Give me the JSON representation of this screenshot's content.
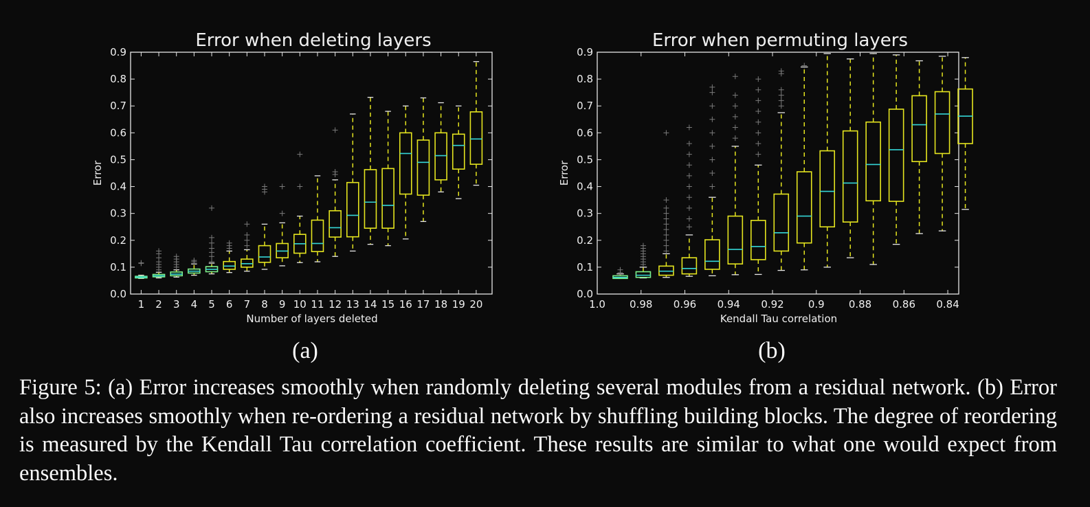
{
  "chart_data": [
    {
      "type": "box",
      "title": "Error when deleting layers",
      "xlabel": "Number of layers deleted",
      "ylabel": "Error",
      "ylim": [
        0.0,
        0.9
      ],
      "yticks": [
        "0.0",
        "0.1",
        "0.2",
        "0.3",
        "0.4",
        "0.5",
        "0.6",
        "0.7",
        "0.8",
        "0.9"
      ],
      "categories": [
        "1",
        "2",
        "3",
        "4",
        "5",
        "6",
        "7",
        "8",
        "9",
        "10",
        "11",
        "12",
        "13",
        "14",
        "15",
        "16",
        "17",
        "18",
        "19",
        "20"
      ],
      "grid": false,
      "box_color": "#e5e51f",
      "early_box_color": "#7ef08a",
      "median_color": "#35d6d6",
      "boxes": [
        {
          "wlo": 0.058,
          "q1": 0.06,
          "med": 0.063,
          "q3": 0.066,
          "whi": 0.07,
          "out": [
            0.114,
            0.116
          ]
        },
        {
          "wlo": 0.06,
          "q1": 0.064,
          "med": 0.068,
          "q3": 0.073,
          "whi": 0.081,
          "out": [
            0.09,
            0.1,
            0.11,
            0.12,
            0.135,
            0.15,
            0.16
          ]
        },
        {
          "wlo": 0.063,
          "q1": 0.068,
          "med": 0.074,
          "q3": 0.082,
          "whi": 0.09,
          "out": [
            0.1,
            0.11,
            0.12,
            0.13,
            0.14
          ]
        },
        {
          "wlo": 0.07,
          "q1": 0.078,
          "med": 0.085,
          "q3": 0.093,
          "whi": 0.112,
          "out": [
            0.12,
            0.125
          ]
        },
        {
          "wlo": 0.075,
          "q1": 0.083,
          "med": 0.092,
          "q3": 0.102,
          "whi": 0.115,
          "out": [
            0.12,
            0.14,
            0.155,
            0.17,
            0.19,
            0.21,
            0.32
          ]
        },
        {
          "wlo": 0.08,
          "q1": 0.092,
          "med": 0.104,
          "q3": 0.121,
          "whi": 0.16,
          "out": [
            0.17,
            0.18,
            0.19
          ]
        },
        {
          "wlo": 0.085,
          "q1": 0.1,
          "med": 0.113,
          "q3": 0.13,
          "whi": 0.165,
          "out": [
            0.18,
            0.2,
            0.22,
            0.26
          ]
        },
        {
          "wlo": 0.092,
          "q1": 0.118,
          "med": 0.138,
          "q3": 0.18,
          "whi": 0.26,
          "out": [
            0.38,
            0.39,
            0.4
          ]
        },
        {
          "wlo": 0.105,
          "q1": 0.135,
          "med": 0.16,
          "q3": 0.188,
          "whi": 0.265,
          "out": [
            0.3,
            0.4
          ]
        },
        {
          "wlo": 0.117,
          "q1": 0.152,
          "med": 0.187,
          "q3": 0.222,
          "whi": 0.29,
          "out": [
            0.4,
            0.52
          ]
        },
        {
          "wlo": 0.12,
          "q1": 0.158,
          "med": 0.188,
          "q3": 0.275,
          "whi": 0.44,
          "out": []
        },
        {
          "wlo": 0.14,
          "q1": 0.212,
          "med": 0.247,
          "q3": 0.31,
          "whi": 0.425,
          "out": [
            0.445,
            0.455,
            0.61
          ]
        },
        {
          "wlo": 0.16,
          "q1": 0.213,
          "med": 0.293,
          "q3": 0.415,
          "whi": 0.67,
          "out": []
        },
        {
          "wlo": 0.185,
          "q1": 0.245,
          "med": 0.342,
          "q3": 0.463,
          "whi": 0.732,
          "out": []
        },
        {
          "wlo": 0.18,
          "q1": 0.245,
          "med": 0.33,
          "q3": 0.467,
          "whi": 0.68,
          "out": []
        },
        {
          "wlo": 0.205,
          "q1": 0.372,
          "med": 0.523,
          "q3": 0.6,
          "whi": 0.7,
          "out": []
        },
        {
          "wlo": 0.27,
          "q1": 0.368,
          "med": 0.49,
          "q3": 0.573,
          "whi": 0.73,
          "out": []
        },
        {
          "wlo": 0.38,
          "q1": 0.425,
          "med": 0.515,
          "q3": 0.6,
          "whi": 0.712,
          "out": []
        },
        {
          "wlo": 0.355,
          "q1": 0.465,
          "med": 0.553,
          "q3": 0.595,
          "whi": 0.7,
          "out": []
        },
        {
          "wlo": 0.405,
          "q1": 0.483,
          "med": 0.577,
          "q3": 0.678,
          "whi": 0.865,
          "out": []
        }
      ]
    },
    {
      "type": "box",
      "title": "Error when permuting layers",
      "xlabel": "Kendall Tau correlation",
      "ylabel": "Error",
      "ylim": [
        0.0,
        0.9
      ],
      "xlim": [
        1.0,
        0.835
      ],
      "yticks": [
        "0.0",
        "0.1",
        "0.2",
        "0.3",
        "0.4",
        "0.5",
        "0.6",
        "0.7",
        "0.8",
        "0.9"
      ],
      "xticks": [
        {
          "value": 1.0,
          "label": "1.0"
        },
        {
          "value": 0.98,
          "label": "0.98"
        },
        {
          "value": 0.96,
          "label": "0.96"
        },
        {
          "value": 0.94,
          "label": "0.94"
        },
        {
          "value": 0.92,
          "label": "0.92"
        },
        {
          "value": 0.9,
          "label": "0.9"
        },
        {
          "value": 0.88,
          "label": "0.88"
        },
        {
          "value": 0.86,
          "label": "0.86"
        },
        {
          "value": 0.84,
          "label": "0.84"
        }
      ],
      "grid": false,
      "box_color": "#e5e51f",
      "early_box_color": "#7ef08a",
      "median_color": "#35d6d6",
      "boxes": [
        {
          "x": 0.9895,
          "wlo": 0.058,
          "q1": 0.058,
          "med": 0.062,
          "q3": 0.068,
          "whi": 0.075,
          "out": [
            0.08,
            0.09
          ]
        },
        {
          "x": 0.979,
          "wlo": 0.06,
          "q1": 0.062,
          "med": 0.07,
          "q3": 0.083,
          "whi": 0.1,
          "out": [
            0.11,
            0.12,
            0.13,
            0.14,
            0.15,
            0.16,
            0.17,
            0.18
          ]
        },
        {
          "x": 0.9685,
          "wlo": 0.062,
          "q1": 0.07,
          "med": 0.085,
          "q3": 0.104,
          "whi": 0.15,
          "out": [
            0.16,
            0.18,
            0.2,
            0.22,
            0.24,
            0.26,
            0.28,
            0.3,
            0.32,
            0.35,
            0.6
          ]
        },
        {
          "x": 0.958,
          "wlo": 0.066,
          "q1": 0.075,
          "med": 0.095,
          "q3": 0.135,
          "whi": 0.22,
          "out": [
            0.25,
            0.28,
            0.32,
            0.36,
            0.4,
            0.44,
            0.48,
            0.52,
            0.56,
            0.62
          ]
        },
        {
          "x": 0.9475,
          "wlo": 0.068,
          "q1": 0.092,
          "med": 0.122,
          "q3": 0.202,
          "whi": 0.36,
          "out": [
            0.4,
            0.45,
            0.5,
            0.55,
            0.6,
            0.65,
            0.7,
            0.75,
            0.77
          ]
        },
        {
          "x": 0.937,
          "wlo": 0.072,
          "q1": 0.112,
          "med": 0.166,
          "q3": 0.29,
          "whi": 0.55,
          "out": [
            0.58,
            0.62,
            0.66,
            0.7,
            0.74,
            0.81
          ]
        },
        {
          "x": 0.9265,
          "wlo": 0.073,
          "q1": 0.128,
          "med": 0.177,
          "q3": 0.274,
          "whi": 0.48,
          "out": [
            0.52,
            0.56,
            0.6,
            0.64,
            0.68,
            0.72,
            0.76,
            0.8
          ]
        },
        {
          "x": 0.916,
          "wlo": 0.088,
          "q1": 0.16,
          "med": 0.228,
          "q3": 0.372,
          "whi": 0.675,
          "out": [
            0.7,
            0.72,
            0.74,
            0.76,
            0.82,
            0.83
          ]
        },
        {
          "x": 0.9055,
          "wlo": 0.09,
          "q1": 0.19,
          "med": 0.29,
          "q3": 0.455,
          "whi": 0.845,
          "out": [
            0.85
          ]
        },
        {
          "x": 0.895,
          "wlo": 0.1,
          "q1": 0.25,
          "med": 0.382,
          "q3": 0.533,
          "whi": 0.895,
          "out": []
        },
        {
          "x": 0.8845,
          "wlo": 0.135,
          "q1": 0.268,
          "med": 0.413,
          "q3": 0.607,
          "whi": 0.875,
          "out": []
        },
        {
          "x": 0.874,
          "wlo": 0.11,
          "q1": 0.347,
          "med": 0.482,
          "q3": 0.64,
          "whi": 0.895,
          "out": []
        },
        {
          "x": 0.8635,
          "wlo": 0.185,
          "q1": 0.345,
          "med": 0.537,
          "q3": 0.688,
          "whi": 0.89,
          "out": []
        },
        {
          "x": 0.853,
          "wlo": 0.225,
          "q1": 0.493,
          "med": 0.63,
          "q3": 0.738,
          "whi": 0.868,
          "out": []
        },
        {
          "x": 0.8425,
          "wlo": 0.235,
          "q1": 0.523,
          "med": 0.67,
          "q3": 0.753,
          "whi": 0.885,
          "out": []
        },
        {
          "x": 0.832,
          "wlo": 0.315,
          "q1": 0.56,
          "med": 0.662,
          "q3": 0.763,
          "whi": 0.88,
          "out": []
        }
      ]
    }
  ],
  "panel_labels": [
    "(a)",
    "(b)"
  ],
  "caption": "Figure 5: (a) Error increases smoothly when randomly deleting several modules from a residual network. (b) Error also increases smoothly when re-ordering a residual network by shuffling building blocks. The degree of reordering is measured by the Kendall Tau correlation coefficient. These results are similar to what one would expect from ensembles."
}
